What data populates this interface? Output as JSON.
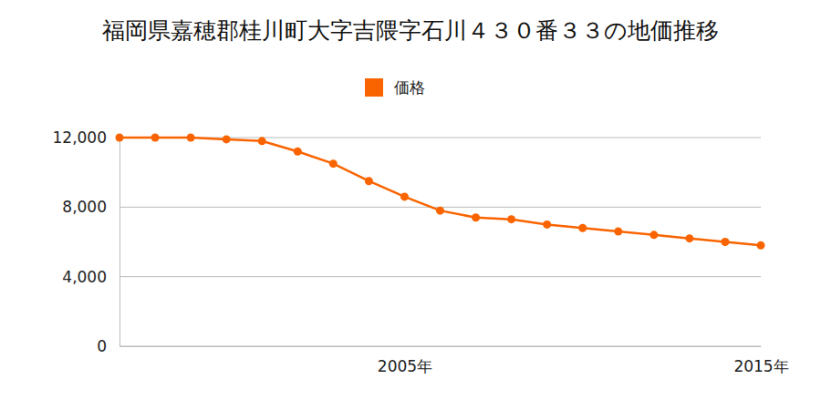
{
  "chart_data": {
    "type": "line",
    "title": "福岡県嘉穂郡桂川町大字吉隈字石川４３０番３３の地価推移",
    "x": [
      1997,
      1998,
      1999,
      2000,
      2001,
      2002,
      2003,
      2004,
      2005,
      2006,
      2007,
      2008,
      2009,
      2010,
      2011,
      2012,
      2013,
      2014,
      2015
    ],
    "series": [
      {
        "name": "価格",
        "color": "#fa6400",
        "marker": "circle",
        "values": [
          12000,
          12000,
          12000,
          11900,
          11800,
          11200,
          10500,
          9500,
          8600,
          7800,
          7400,
          7300,
          7000,
          6800,
          6600,
          6400,
          6200,
          6000,
          5800
        ]
      }
    ],
    "xlim": [
      1997,
      2015
    ],
    "xticks": [
      {
        "value": 2005,
        "label": "2005年"
      },
      {
        "value": 2015,
        "label": "2015年"
      }
    ],
    "ylim": [
      0,
      12000
    ],
    "yticks": [
      0,
      {
        "value": 4000,
        "label": "4,000"
      },
      {
        "value": 8000,
        "label": "8,000"
      },
      {
        "value": 12000,
        "label": "12,000"
      }
    ],
    "grid": true,
    "legend": "top"
  }
}
